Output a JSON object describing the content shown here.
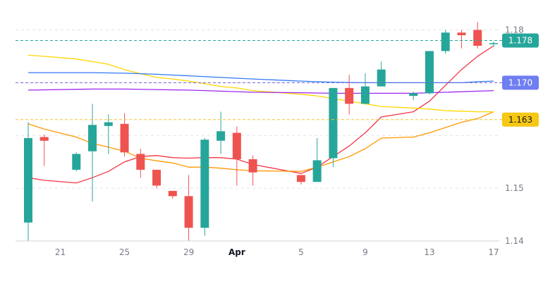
{
  "chart_data": {
    "type": "candlestick",
    "grid": true,
    "ylim": [
      1.14,
      1.18
    ],
    "y_ticks": [
      {
        "value": 1.18,
        "label": "1.18"
      },
      {
        "value": 1.15,
        "label": "1.15"
      },
      {
        "value": 1.14,
        "label": "1.14"
      }
    ],
    "x_ticks": [
      {
        "day": 21,
        "label": "21",
        "bold": false
      },
      {
        "day": 25,
        "label": "25",
        "bold": false
      },
      {
        "day": 29,
        "label": "29",
        "bold": false
      },
      {
        "day": 32,
        "label": "Apr",
        "bold": true
      },
      {
        "day": 36,
        "label": "5",
        "bold": false
      },
      {
        "day": 40,
        "label": "9",
        "bold": false
      },
      {
        "day": 44,
        "label": "13",
        "bold": false
      },
      {
        "day": 48,
        "label": "17",
        "bold": false
      }
    ],
    "xlim": [
      18.5,
      48.5
    ],
    "candles": [
      {
        "day": 19,
        "open": 1.1435,
        "high": 1.1625,
        "low": 1.14,
        "close": 1.1595
      },
      {
        "day": 20,
        "open": 1.1597,
        "high": 1.1602,
        "low": 1.1542,
        "close": 1.159
      },
      {
        "day": 22,
        "open": 1.1535,
        "high": 1.1568,
        "low": 1.1532,
        "close": 1.1565
      },
      {
        "day": 23,
        "open": 1.157,
        "high": 1.166,
        "low": 1.1475,
        "close": 1.162
      },
      {
        "day": 24,
        "open": 1.1618,
        "high": 1.164,
        "low": 1.1565,
        "close": 1.1625
      },
      {
        "day": 25,
        "open": 1.1622,
        "high": 1.1642,
        "low": 1.156,
        "close": 1.1568
      },
      {
        "day": 26,
        "open": 1.1565,
        "high": 1.1575,
        "low": 1.152,
        "close": 1.1535
      },
      {
        "day": 27,
        "open": 1.1535,
        "high": 1.1535,
        "low": 1.15,
        "close": 1.1505
      },
      {
        "day": 28,
        "open": 1.1495,
        "high": 1.1495,
        "low": 1.148,
        "close": 1.1485
      },
      {
        "day": 29,
        "open": 1.1485,
        "high": 1.1525,
        "low": 1.14,
        "close": 1.1425
      },
      {
        "day": 30,
        "open": 1.1425,
        "high": 1.1595,
        "low": 1.141,
        "close": 1.1592
      },
      {
        "day": 31,
        "open": 1.159,
        "high": 1.1645,
        "low": 1.1565,
        "close": 1.1608
      },
      {
        "day": 32,
        "open": 1.1605,
        "high": 1.1617,
        "low": 1.1505,
        "close": 1.1555
      },
      {
        "day": 33,
        "open": 1.1555,
        "high": 1.1562,
        "low": 1.1505,
        "close": 1.153
      },
      {
        "day": 36,
        "open": 1.1525,
        "high": 1.1525,
        "low": 1.1507,
        "close": 1.1512
      },
      {
        "day": 37,
        "open": 1.1512,
        "high": 1.1595,
        "low": 1.1512,
        "close": 1.1553
      },
      {
        "day": 38,
        "open": 1.1557,
        "high": 1.169,
        "low": 1.154,
        "close": 1.169
      },
      {
        "day": 39,
        "open": 1.169,
        "high": 1.1715,
        "low": 1.164,
        "close": 1.166
      },
      {
        "day": 40,
        "open": 1.166,
        "high": 1.1718,
        "low": 1.166,
        "close": 1.1693
      },
      {
        "day": 41,
        "open": 1.1693,
        "high": 1.174,
        "low": 1.1693,
        "close": 1.1725
      },
      {
        "day": 43,
        "open": 1.1675,
        "high": 1.1683,
        "low": 1.1667,
        "close": 1.168
      },
      {
        "day": 44,
        "open": 1.168,
        "high": 1.176,
        "low": 1.1678,
        "close": 1.176
      },
      {
        "day": 45,
        "open": 1.176,
        "high": 1.18,
        "low": 1.1755,
        "close": 1.1795
      },
      {
        "day": 46,
        "open": 1.1795,
        "high": 1.18,
        "low": 1.1765,
        "close": 1.179
      },
      {
        "day": 47,
        "open": 1.18,
        "high": 1.1815,
        "low": 1.1765,
        "close": 1.177
      },
      {
        "day": 48,
        "open": 1.1775,
        "high": 1.1778,
        "low": 1.1768,
        "close": 1.1775
      }
    ],
    "series": [
      {
        "color": "#f23645",
        "points": [
          [
            19,
            1.152
          ],
          [
            20,
            1.1515
          ],
          [
            22,
            1.151
          ],
          [
            23,
            1.152
          ],
          [
            24,
            1.1532
          ],
          [
            25,
            1.155
          ],
          [
            26,
            1.156
          ],
          [
            27,
            1.1562
          ],
          [
            28,
            1.1558
          ],
          [
            29,
            1.1557
          ],
          [
            30,
            1.1558
          ],
          [
            31,
            1.1558
          ],
          [
            32,
            1.1555
          ],
          [
            33,
            1.1545
          ],
          [
            36,
            1.1528
          ],
          [
            37,
            1.154
          ],
          [
            38,
            1.156
          ],
          [
            39,
            1.158
          ],
          [
            40,
            1.1605
          ],
          [
            41,
            1.1635
          ],
          [
            43,
            1.1645
          ],
          [
            44,
            1.1665
          ],
          [
            45,
            1.1695
          ],
          [
            46,
            1.1725
          ],
          [
            47,
            1.175
          ],
          [
            48,
            1.177
          ]
        ]
      },
      {
        "color": "#ff9800",
        "points": [
          [
            19,
            1.1622
          ],
          [
            20,
            1.1612
          ],
          [
            22,
            1.1597
          ],
          [
            23,
            1.1585
          ],
          [
            24,
            1.1578
          ],
          [
            25,
            1.157
          ],
          [
            26,
            1.1557
          ],
          [
            27,
            1.1552
          ],
          [
            28,
            1.1548
          ],
          [
            29,
            1.154
          ],
          [
            30,
            1.154
          ],
          [
            31,
            1.1538
          ],
          [
            32,
            1.1535
          ],
          [
            33,
            1.1533
          ],
          [
            36,
            1.1532
          ],
          [
            37,
            1.154
          ],
          [
            38,
            1.155
          ],
          [
            39,
            1.156
          ],
          [
            40,
            1.1575
          ],
          [
            41,
            1.1595
          ],
          [
            43,
            1.1597
          ],
          [
            44,
            1.1605
          ],
          [
            45,
            1.1615
          ],
          [
            46,
            1.1625
          ],
          [
            47,
            1.1632
          ],
          [
            48,
            1.1645
          ]
        ]
      },
      {
        "color": "#ffd600",
        "points": [
          [
            19,
            1.1752
          ],
          [
            20,
            1.175
          ],
          [
            22,
            1.1745
          ],
          [
            23,
            1.174
          ],
          [
            24,
            1.1735
          ],
          [
            25,
            1.1725
          ],
          [
            26,
            1.1717
          ],
          [
            27,
            1.171
          ],
          [
            28,
            1.1707
          ],
          [
            29,
            1.1703
          ],
          [
            30,
            1.1698
          ],
          [
            31,
            1.1693
          ],
          [
            32,
            1.169
          ],
          [
            33,
            1.1685
          ],
          [
            36,
            1.1678
          ],
          [
            37,
            1.1675
          ],
          [
            38,
            1.167
          ],
          [
            39,
            1.1665
          ],
          [
            40,
            1.166
          ],
          [
            41,
            1.1655
          ],
          [
            43,
            1.1652
          ],
          [
            44,
            1.165
          ],
          [
            45,
            1.1647
          ],
          [
            46,
            1.1646
          ],
          [
            47,
            1.1645
          ],
          [
            48,
            1.1645
          ]
        ]
      },
      {
        "color": "#3179f5",
        "points": [
          [
            19,
            1.1719
          ],
          [
            23,
            1.1719
          ],
          [
            25,
            1.1718
          ],
          [
            27,
            1.1716
          ],
          [
            29,
            1.1713
          ],
          [
            31,
            1.171
          ],
          [
            33,
            1.1707
          ],
          [
            36,
            1.1703
          ],
          [
            38,
            1.1701
          ],
          [
            40,
            1.17
          ],
          [
            41,
            1.17
          ],
          [
            43,
            1.17
          ],
          [
            44,
            1.17
          ],
          [
            46,
            1.17
          ],
          [
            47,
            1.1702
          ],
          [
            48,
            1.1703
          ]
        ]
      },
      {
        "color": "#9c27f0",
        "points": [
          [
            19,
            1.1686
          ],
          [
            23,
            1.1688
          ],
          [
            25,
            1.1688
          ],
          [
            27,
            1.1687
          ],
          [
            29,
            1.1686
          ],
          [
            31,
            1.1684
          ],
          [
            33,
            1.1682
          ],
          [
            36,
            1.1681
          ],
          [
            38,
            1.168
          ],
          [
            40,
            1.168
          ],
          [
            43,
            1.168
          ],
          [
            45,
            1.1682
          ],
          [
            47,
            1.1684
          ],
          [
            48,
            1.1685
          ]
        ]
      }
    ],
    "price_lines": [
      {
        "value": 1.178,
        "label": "1.178",
        "line_color": "#26a69a",
        "bg": "#26a69a",
        "dark_text": false
      },
      {
        "value": 1.17,
        "label": "1.170",
        "line_color": "#6f63e0",
        "bg": "#6f7ef0",
        "dark_text": false
      },
      {
        "value": 1.163,
        "label": "1.163",
        "line_color": "#f4c430",
        "bg": "#f6c813",
        "dark_text": true
      }
    ],
    "colors": {
      "up": "#26a69a",
      "down": "#ef5350",
      "grid": "#e0e3eb",
      "axis_text": "#787b86"
    }
  }
}
